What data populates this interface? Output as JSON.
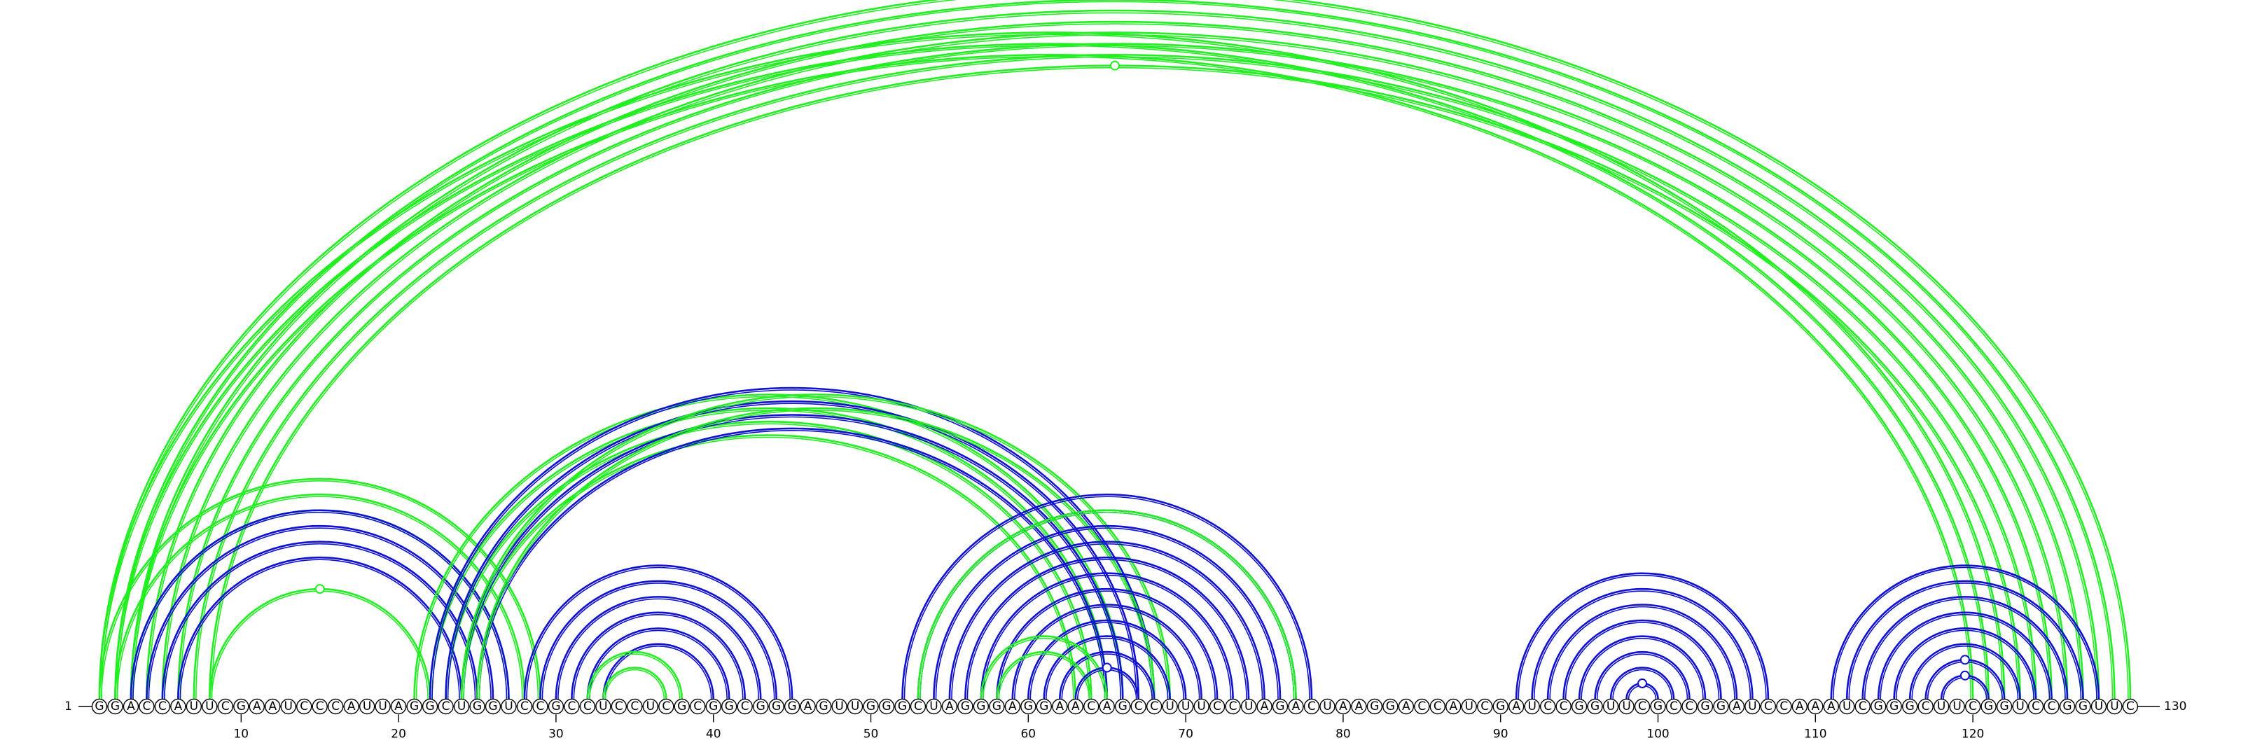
{
  "sequence": "GGACCAUUCGAAUCCCAUUAGGCUGGUCCGCCUCCUCGCGGCGGGAGUUGGGCUAGGGAGGAACAGCCUUUCCUAGACUAAGGACCAUCGAUCCGGUUCGCCGGAUCCAAAUCGGGCUUCGGUCCGGUUC",
  "start_label": "1",
  "end_label": "130",
  "ticks": [
    {
      "position": 10,
      "label": "10"
    },
    {
      "position": 20,
      "label": "20"
    },
    {
      "position": 30,
      "label": "30"
    },
    {
      "position": 40,
      "label": "40"
    },
    {
      "position": 50,
      "label": "50"
    },
    {
      "position": 60,
      "label": "60"
    },
    {
      "position": 70,
      "label": "70"
    },
    {
      "position": 80,
      "label": "80"
    },
    {
      "position": 90,
      "label": "90"
    },
    {
      "position": 100,
      "label": "100"
    },
    {
      "position": 110,
      "label": "110"
    },
    {
      "position": 120,
      "label": "120"
    }
  ],
  "colors": {
    "structure_a": "#1010d0",
    "structure_b": "#22ee22",
    "baseline": "#000000"
  },
  "arc_groups": [
    {
      "structure": "structure_b",
      "pairs": [
        [
          1,
          130
        ],
        [
          2,
          129
        ],
        [
          3,
          128
        ],
        [
          4,
          127
        ],
        [
          5,
          126
        ],
        [
          6,
          125
        ],
        [
          7,
          124
        ],
        [
          8,
          123
        ]
      ],
      "marker": true
    },
    {
      "structure": "structure_b",
      "pairs": [
        [
          1,
          122
        ],
        [
          2,
          121
        ],
        [
          3,
          120
        ]
      ],
      "marker": false
    },
    {
      "structure": "structure_b",
      "pairs": [
        [
          1,
          29
        ],
        [
          2,
          28
        ],
        [
          3,
          27
        ]
      ],
      "marker": false
    },
    {
      "structure": "structure_a",
      "pairs": [
        [
          3,
          27
        ],
        [
          4,
          26
        ],
        [
          5,
          25
        ],
        [
          6,
          24
        ]
      ],
      "marker": false
    },
    {
      "structure": "structure_b",
      "pairs": [
        [
          8,
          22
        ]
      ],
      "marker": true
    },
    {
      "structure": "structure_b",
      "pairs": [
        [
          21,
          66
        ],
        [
          22,
          65
        ],
        [
          23,
          64
        ],
        [
          24,
          63
        ]
      ],
      "marker": false
    },
    {
      "structure": "structure_a",
      "pairs": [
        [
          22,
          68
        ],
        [
          23,
          67
        ],
        [
          24,
          66
        ],
        [
          25,
          65
        ]
      ],
      "marker": false
    },
    {
      "structure": "structure_b",
      "pairs": [
        [
          24,
          69
        ],
        [
          25,
          68
        ]
      ],
      "marker": false
    },
    {
      "structure": "structure_a",
      "pairs": [
        [
          28,
          45
        ],
        [
          29,
          44
        ],
        [
          30,
          43
        ],
        [
          31,
          42
        ],
        [
          32,
          41
        ],
        [
          33,
          40
        ]
      ],
      "marker": false
    },
    {
      "structure": "structure_b",
      "pairs": [
        [
          32,
          38
        ],
        [
          33,
          37
        ]
      ],
      "marker": false
    },
    {
      "structure": "structure_a",
      "pairs": [
        [
          52,
          78
        ],
        [
          53,
          77
        ],
        [
          54,
          76
        ],
        [
          55,
          75
        ],
        [
          56,
          74
        ],
        [
          57,
          73
        ],
        [
          58,
          72
        ],
        [
          59,
          71
        ],
        [
          60,
          70
        ],
        [
          61,
          69
        ],
        [
          62,
          68
        ]
      ],
      "marker": false
    },
    {
      "structure": "structure_b",
      "pairs": [
        [
          53,
          77
        ],
        [
          57,
          65
        ],
        [
          58,
          64
        ]
      ],
      "marker": false
    },
    {
      "structure": "structure_a",
      "pairs": [
        [
          63,
          67
        ]
      ],
      "marker": true
    },
    {
      "structure": "structure_a",
      "pairs": [
        [
          91,
          107
        ],
        [
          92,
          106
        ],
        [
          93,
          105
        ],
        [
          94,
          104
        ],
        [
          95,
          103
        ],
        [
          96,
          102
        ],
        [
          97,
          101
        ],
        [
          98,
          100
        ]
      ],
      "marker": true
    },
    {
      "structure": "structure_a",
      "pairs": [
        [
          111,
          128
        ],
        [
          112,
          127
        ],
        [
          113,
          126
        ],
        [
          114,
          125
        ],
        [
          115,
          124
        ],
        [
          116,
          123
        ],
        [
          117,
          122
        ]
      ],
      "marker": true
    },
    {
      "structure": "structure_a",
      "pairs": [
        [
          118,
          121
        ]
      ],
      "marker": true
    }
  ]
}
